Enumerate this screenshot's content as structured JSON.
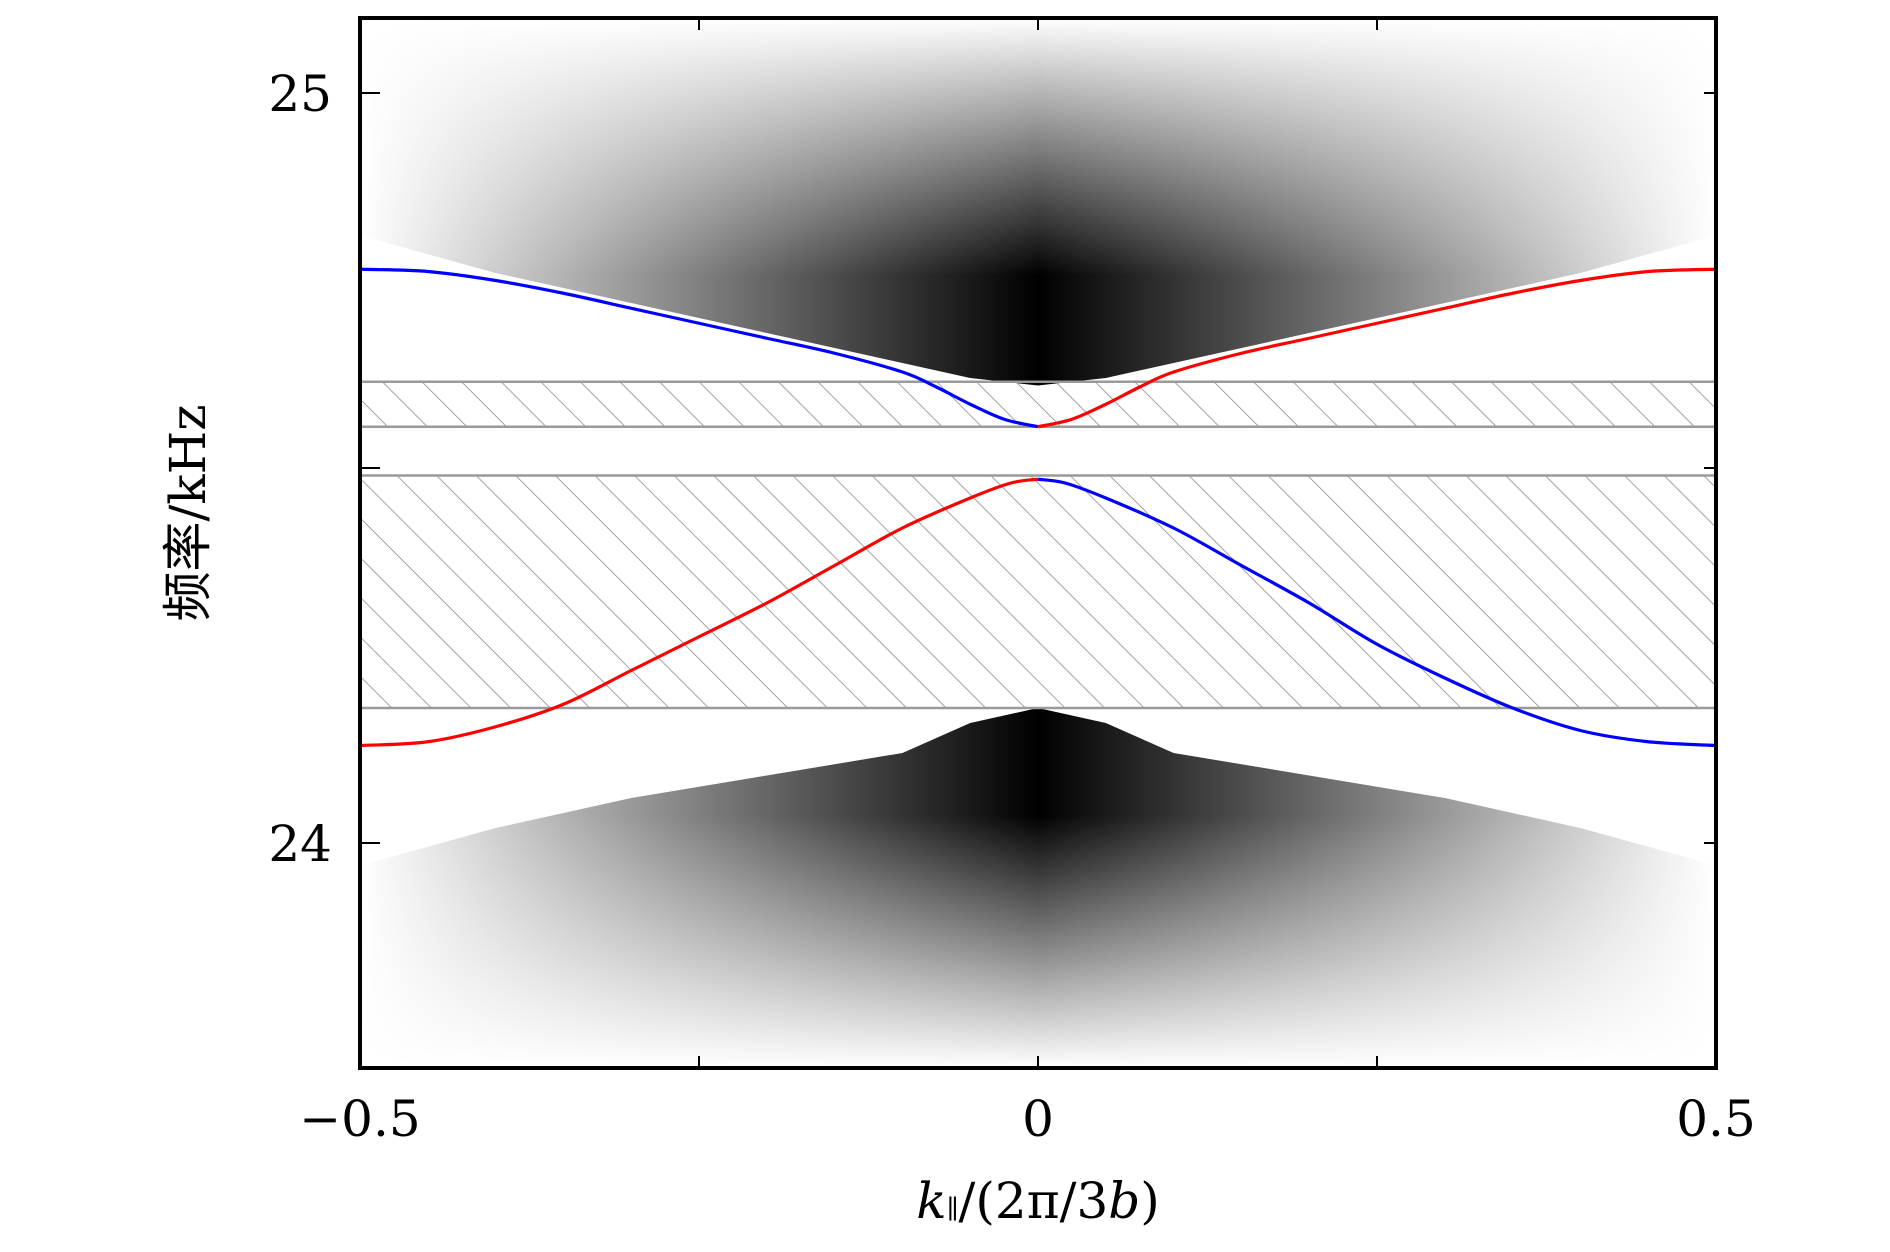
{
  "chart_data": {
    "type": "line",
    "title": "",
    "xlabel": "k∥/(2π/3b)",
    "ylabel": "频率/kHz",
    "xlim": [
      -0.5,
      0.5
    ],
    "ylim": [
      23.7,
      25.1
    ],
    "xticks": [
      -0.5,
      -0.25,
      0,
      0.25,
      0.5
    ],
    "xtick_labels": [
      "−0.5",
      "",
      "0",
      "",
      "0.5"
    ],
    "yticks": [
      24,
      24.5,
      25
    ],
    "ytick_labels": [
      "24",
      "",
      "25"
    ],
    "grid": false,
    "bulk_bands": {
      "upper_edge": {
        "x": [
          -0.5,
          -0.4,
          -0.3,
          -0.2,
          -0.1,
          -0.05,
          0,
          0.05,
          0.1,
          0.2,
          0.3,
          0.4,
          0.5
        ],
        "y": [
          24.81,
          24.76,
          24.72,
          24.68,
          24.64,
          24.62,
          24.61,
          24.62,
          24.64,
          24.68,
          24.72,
          24.76,
          24.81
        ]
      },
      "lower_edge": {
        "x": [
          -0.5,
          -0.4,
          -0.3,
          -0.2,
          -0.1,
          -0.05,
          0,
          0.05,
          0.1,
          0.2,
          0.3,
          0.4,
          0.5
        ],
        "y": [
          23.97,
          24.02,
          24.06,
          24.09,
          24.12,
          24.16,
          24.18,
          24.16,
          24.12,
          24.09,
          24.06,
          24.02,
          23.97
        ]
      }
    },
    "hatched_bands": [
      {
        "ymin": 24.555,
        "ymax": 24.615
      },
      {
        "ymin": 24.18,
        "ymax": 24.49
      }
    ],
    "series": [
      {
        "name": "upper-edge-state-left",
        "color": "#0000ff",
        "x": [
          -0.5,
          -0.45,
          -0.4,
          -0.35,
          -0.3,
          -0.25,
          -0.2,
          -0.15,
          -0.1,
          -0.075,
          -0.05,
          -0.025,
          0
        ],
        "y": [
          24.765,
          24.762,
          24.75,
          24.733,
          24.713,
          24.693,
          24.673,
          24.653,
          24.628,
          24.608,
          24.585,
          24.565,
          24.555
        ]
      },
      {
        "name": "upper-edge-state-right",
        "color": "#ff0000",
        "x": [
          0,
          0.025,
          0.05,
          0.075,
          0.1,
          0.15,
          0.2,
          0.25,
          0.3,
          0.35,
          0.4,
          0.45,
          0.5
        ],
        "y": [
          24.555,
          24.565,
          24.585,
          24.608,
          24.628,
          24.653,
          24.673,
          24.693,
          24.713,
          24.733,
          24.75,
          24.762,
          24.765
        ]
      },
      {
        "name": "lower-edge-state-red",
        "color": "#ff0000",
        "x": [
          -0.5,
          -0.45,
          -0.4,
          -0.35,
          -0.3,
          -0.25,
          -0.2,
          -0.15,
          -0.1,
          -0.05,
          -0.02,
          0
        ],
        "y": [
          24.13,
          24.135,
          24.155,
          24.185,
          24.23,
          24.275,
          24.32,
          24.37,
          24.42,
          24.46,
          24.48,
          24.485
        ]
      },
      {
        "name": "lower-edge-state-blue",
        "color": "#0000ff",
        "x": [
          0,
          0.02,
          0.05,
          0.1,
          0.15,
          0.2,
          0.25,
          0.3,
          0.35,
          0.4,
          0.45,
          0.5
        ],
        "y": [
          24.485,
          24.48,
          24.46,
          24.42,
          24.37,
          24.32,
          24.265,
          24.22,
          24.18,
          24.15,
          24.135,
          24.13
        ]
      }
    ]
  }
}
